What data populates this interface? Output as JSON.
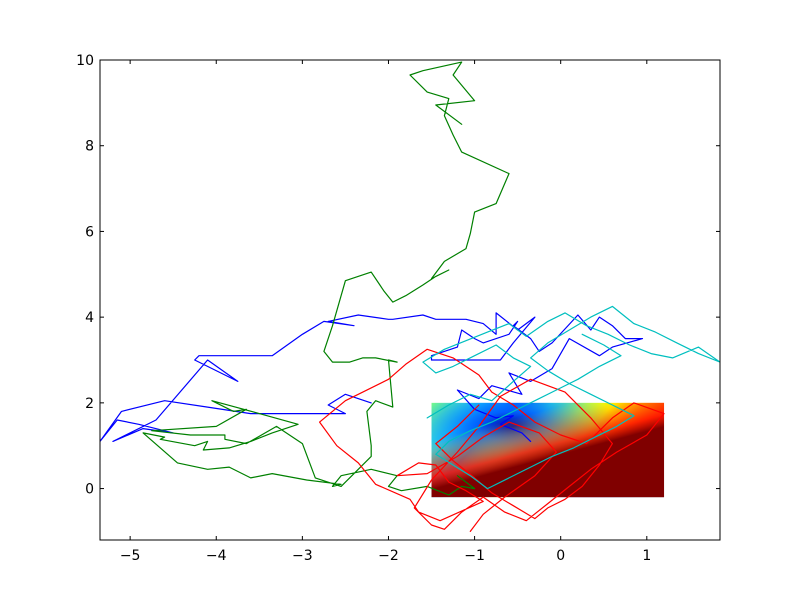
{
  "chart_data": {
    "type": "line",
    "title": "",
    "xlabel": "",
    "ylabel": "",
    "xlim": [
      -5.35,
      1.85
    ],
    "ylim": [
      -1.2,
      10.0
    ],
    "grid": false,
    "x_ticks": [
      -5,
      -4,
      -3,
      -2,
      -1,
      0,
      1
    ],
    "y_ticks": [
      0,
      2,
      4,
      6,
      8,
      10
    ],
    "x_tick_labels": [
      "−5",
      "−4",
      "−3",
      "−2",
      "−1",
      "0",
      "1"
    ],
    "y_tick_labels": [
      "0",
      "2",
      "4",
      "6",
      "8",
      "10"
    ],
    "heatmap": {
      "type": "heatmap",
      "colormap": "jet",
      "extent": {
        "x": [
          -1.5,
          1.2
        ],
        "y": [
          -0.2,
          2.0
        ]
      }
    },
    "series": [
      {
        "color": "#0000ff",
        "x": [
          -2.2,
          -2.5,
          -2.7,
          -2.5,
          -2.85,
          -3.3,
          -3.6,
          -4.1,
          -4.6,
          -5.1,
          -5.35,
          -5.15,
          -4.9,
          -4.5,
          -4.85,
          -5.2,
          -4.7,
          -4.1,
          -3.75,
          -4.25,
          -4.2,
          -3.35,
          -3.0,
          -2.75,
          -2.4,
          -2.7,
          -2.35,
          -2.0,
          -1.95,
          -1.6,
          -1.45,
          -1.1,
          -0.9,
          -0.75,
          -0.75,
          -0.5,
          -0.3,
          -0.55,
          -0.7,
          -1.05,
          -1.5,
          -1.5,
          -1.2,
          -1.15,
          -1.0,
          -0.9,
          -0.6,
          -0.5,
          -0.55,
          -0.35,
          -0.25,
          -0.1,
          0.2,
          0.35,
          0.45,
          0.6,
          0.75,
          0.95,
          0.6,
          0.45,
          0.1,
          -0.1,
          -0.35,
          -0.6,
          -0.45,
          -0.8,
          -0.95,
          -1.2,
          -1.0,
          -0.75,
          -0.55,
          -0.7,
          -0.45,
          -0.35
        ],
        "y": [
          2.0,
          2.2,
          1.95,
          1.75,
          1.75,
          1.75,
          1.75,
          1.9,
          2.05,
          1.8,
          1.1,
          1.6,
          1.5,
          1.3,
          1.4,
          1.1,
          1.6,
          3.0,
          2.5,
          3.0,
          3.1,
          3.1,
          3.6,
          3.9,
          3.8,
          3.9,
          4.05,
          3.95,
          3.95,
          4.05,
          3.95,
          3.95,
          3.85,
          3.6,
          4.1,
          3.7,
          4.0,
          3.4,
          3.0,
          3.0,
          3.0,
          3.1,
          3.3,
          3.7,
          3.5,
          3.4,
          3.6,
          3.9,
          3.8,
          3.5,
          3.2,
          3.4,
          4.05,
          3.7,
          4.0,
          3.8,
          3.5,
          3.5,
          3.3,
          3.1,
          3.5,
          2.8,
          2.5,
          2.7,
          2.2,
          2.4,
          2.1,
          2.3,
          1.85,
          1.65,
          1.7,
          1.5,
          1.3,
          1.1
        ]
      },
      {
        "color": "#008000",
        "x": [
          -1.2,
          -1.0,
          -1.15,
          -1.3,
          -1.55,
          -1.85,
          -2.0,
          -1.9,
          -2.2,
          -2.55,
          -2.65,
          -2.55,
          -2.95,
          -3.35,
          -3.6,
          -3.85,
          -4.1,
          -4.45,
          -4.85,
          -4.6,
          -4.65,
          -4.25,
          -4.1,
          -4.15,
          -3.85,
          -3.6,
          -3.35,
          -3.05,
          -3.5,
          -4.05,
          -3.8,
          -3.65,
          -4.0,
          -4.75,
          -4.3,
          -3.9,
          -3.9,
          -3.65,
          -3.3,
          -3.0,
          -2.85,
          -2.55,
          -2.2,
          -2.2,
          -2.25,
          -2.15,
          -1.95,
          -2.0,
          -1.9,
          -2.15,
          -2.3,
          -2.45,
          -2.65,
          -2.75,
          -2.65,
          -2.5,
          -2.2,
          -2.05,
          -1.95,
          -1.8,
          -1.6,
          -1.45,
          -1.3,
          -1.5,
          -1.35,
          -1.1,
          -1.05,
          -1.0,
          -0.75,
          -0.6,
          -1.15,
          -1.25,
          -1.35,
          -1.3,
          -1.55,
          -1.75,
          -1.6,
          -1.15,
          -1.25,
          -1.0,
          -1.45,
          -1.15
        ],
        "y": [
          0.3,
          0.0,
          0.05,
          -0.15,
          0.05,
          -0.05,
          0.05,
          0.3,
          0.45,
          0.3,
          0.05,
          0.1,
          0.2,
          0.35,
          0.25,
          0.5,
          0.45,
          0.6,
          1.3,
          1.2,
          1.15,
          1.0,
          1.1,
          0.9,
          0.95,
          1.1,
          1.3,
          1.5,
          1.75,
          2.05,
          1.8,
          1.85,
          1.45,
          1.35,
          1.25,
          1.25,
          1.15,
          1.05,
          1.45,
          1.05,
          0.25,
          0.05,
          0.75,
          1.0,
          1.8,
          2.05,
          1.9,
          3.0,
          2.95,
          3.05,
          3.05,
          2.95,
          2.95,
          3.2,
          3.8,
          4.85,
          5.05,
          4.6,
          4.35,
          4.5,
          4.75,
          4.95,
          5.1,
          4.9,
          5.3,
          5.6,
          5.95,
          6.45,
          6.65,
          7.35,
          7.85,
          8.25,
          8.7,
          9.1,
          9.25,
          9.65,
          9.75,
          9.95,
          9.65,
          9.05,
          8.95,
          8.5
        ]
      },
      {
        "color": "#ff0000",
        "x": [
          -1.05,
          -0.9,
          -0.65,
          -0.3,
          -0.05,
          -0.25,
          -0.6,
          -0.9,
          -1.2,
          -1.55,
          -1.9,
          -1.65,
          -1.45,
          -1.3,
          -1.1,
          -0.9,
          -1.4,
          -1.65,
          -1.75,
          -2.15,
          -2.35,
          -2.6,
          -2.8,
          -2.5,
          -2.0,
          -1.8,
          -1.55,
          -1.25,
          -0.95,
          -0.8,
          -0.55,
          -0.3,
          0.0,
          0.3,
          0.6,
          0.85,
          1.2,
          1.0,
          0.65,
          0.35,
          0.1,
          -0.15,
          -0.4,
          -0.65,
          -0.9,
          -1.15,
          -1.35,
          -1.5,
          -1.7,
          -1.5,
          -1.2,
          -0.95,
          -0.7,
          -0.35,
          0.05,
          0.35,
          0.6,
          0.45,
          0.25,
          0.05,
          -0.15,
          -0.3,
          -0.55,
          -0.8,
          -1.0,
          -1.25,
          -1.45,
          -1.2,
          -0.95
        ],
        "y": [
          -1.0,
          -0.6,
          -0.2,
          0.3,
          0.85,
          1.3,
          1.55,
          1.2,
          0.75,
          0.35,
          0.3,
          0.6,
          0.55,
          0.15,
          -0.05,
          -0.3,
          -0.75,
          -0.55,
          -0.25,
          0.1,
          0.6,
          1.0,
          1.55,
          2.05,
          2.55,
          2.9,
          3.25,
          3.05,
          2.65,
          2.25,
          1.95,
          1.55,
          1.25,
          1.05,
          1.65,
          2.0,
          1.75,
          1.25,
          0.85,
          0.45,
          0.05,
          -0.35,
          -0.75,
          -0.55,
          -0.2,
          -0.55,
          -0.95,
          -0.85,
          -0.45,
          0.2,
          0.85,
          1.45,
          2.15,
          2.55,
          2.25,
          1.65,
          1.05,
          0.55,
          0.05,
          -0.25,
          -0.45,
          -0.7,
          -0.4,
          -0.1,
          0.25,
          0.65,
          1.05,
          1.45,
          1.95
        ]
      },
      {
        "color": "#00bfbf",
        "x": [
          -1.55,
          -1.3,
          -1.05,
          -0.8,
          -0.55,
          -0.35,
          -0.55,
          -0.75,
          -1.0,
          -1.25,
          -1.45,
          -1.6,
          -1.35,
          -1.1,
          -0.85,
          -0.6,
          -0.4,
          -0.15,
          0.05,
          0.3,
          0.55,
          0.8,
          1.05,
          1.3,
          1.6,
          1.85,
          1.6,
          1.35,
          1.1,
          0.85,
          0.6,
          0.35,
          0.1,
          -0.15,
          -0.35,
          -0.15,
          0.1,
          0.35,
          0.6,
          0.85,
          0.65,
          0.4,
          0.15,
          -0.1,
          -0.35,
          -0.6,
          -0.85,
          -1.05,
          -1.25,
          -1.45,
          -1.3,
          -1.05,
          -0.8,
          -0.55,
          -0.3,
          -0.05,
          0.2,
          0.45,
          0.7,
          0.5,
          0.25
        ],
        "y": [
          1.65,
          1.95,
          2.2,
          2.05,
          2.5,
          2.85,
          3.05,
          3.35,
          3.1,
          2.85,
          2.7,
          2.95,
          3.25,
          3.45,
          3.65,
          3.85,
          3.55,
          3.9,
          4.1,
          3.8,
          3.6,
          3.35,
          3.15,
          3.05,
          3.3,
          2.95,
          3.15,
          3.4,
          3.65,
          3.85,
          4.25,
          4.0,
          3.7,
          3.4,
          3.05,
          2.75,
          2.45,
          2.2,
          1.95,
          1.7,
          1.45,
          1.2,
          0.95,
          0.75,
          0.5,
          0.25,
          0.0,
          0.3,
          0.55,
          0.8,
          1.1,
          1.35,
          1.55,
          1.8,
          2.05,
          2.3,
          2.55,
          2.85,
          3.1,
          3.35,
          3.6
        ]
      }
    ]
  }
}
